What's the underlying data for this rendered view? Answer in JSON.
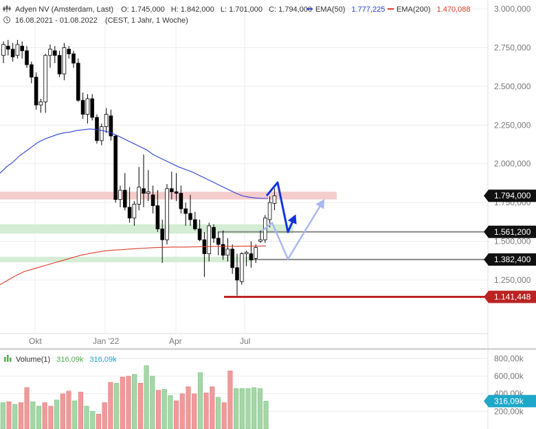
{
  "header": {
    "instrument": "Adyen NV (Amsterdam, Last)",
    "open": "O: 1.745,000",
    "high": "H: 1.842,000",
    "low": "L: 1.701,000",
    "close": "C: 1.794,000",
    "ema50_label": "EMA(50)",
    "ema50_value": "1.777,225",
    "ema200_label": "EMA(200)",
    "ema200_value": "1.470,088",
    "date_range": "16.08.2021 - 01.08.2022",
    "settings": "(CEST, 1 Jahr, 1 Woche)",
    "volume_label": "Volume(1)",
    "volume_value_1": "316,09k",
    "volume_value_2": "316,09k"
  },
  "colors": {
    "up": "#ffffff",
    "down": "#000000",
    "ema50": "#2a3fd6",
    "ema200": "#e03a2a",
    "resistance_zone": "#f4cccc",
    "support_zone": "#d4edd4",
    "support_line": "#888888",
    "low_line": "#bb2222",
    "arrow_dark": "#1133dd",
    "arrow_light": "#a9b8ee",
    "volume_up": "#a5d6a7",
    "volume_down": "#ef9a9a",
    "volume_badge": "#1ea7c8"
  },
  "chart_data": {
    "type": "candlestick",
    "x_ticks": [
      "Okt",
      "Jan '22",
      "Apr",
      "Jul"
    ],
    "y_ticks": [
      "3.000,000",
      "2.750,000",
      "2.500,000",
      "2.250,000",
      "2.000,000",
      "1.750,000",
      "1.500,000",
      "1.250,000"
    ],
    "ylim": [
      1000,
      3000
    ],
    "y_tick_values": [
      3000,
      2750,
      2500,
      2250,
      2000,
      1750,
      1500,
      1250
    ],
    "price_labels": [
      {
        "value": 1794,
        "text": "1.794,000",
        "style": "dark"
      },
      {
        "value": 1561.2,
        "text": "1.561,200",
        "style": "dark"
      },
      {
        "value": 1382.4,
        "text": "1.382,400",
        "style": "dark"
      },
      {
        "value": 1141.448,
        "text": "1.141,448",
        "style": "red"
      }
    ],
    "candles": [
      {
        "o": 2700,
        "h": 2790,
        "l": 2650,
        "c": 2770
      },
      {
        "o": 2760,
        "h": 2800,
        "l": 2700,
        "c": 2740
      },
      {
        "o": 2740,
        "h": 2780,
        "l": 2660,
        "c": 2690
      },
      {
        "o": 2700,
        "h": 2800,
        "l": 2680,
        "c": 2770
      },
      {
        "o": 2760,
        "h": 2790,
        "l": 2680,
        "c": 2730
      },
      {
        "o": 2730,
        "h": 2760,
        "l": 2620,
        "c": 2640
      },
      {
        "o": 2640,
        "h": 2660,
        "l": 2520,
        "c": 2560
      },
      {
        "o": 2560,
        "h": 2590,
        "l": 2350,
        "c": 2380
      },
      {
        "o": 2380,
        "h": 2420,
        "l": 2330,
        "c": 2400
      },
      {
        "o": 2400,
        "h": 2710,
        "l": 2330,
        "c": 2700
      },
      {
        "o": 2700,
        "h": 2770,
        "l": 2620,
        "c": 2740
      },
      {
        "o": 2730,
        "h": 2760,
        "l": 2650,
        "c": 2700
      },
      {
        "o": 2700,
        "h": 2730,
        "l": 2560,
        "c": 2580
      },
      {
        "o": 2580,
        "h": 2780,
        "l": 2540,
        "c": 2750
      },
      {
        "o": 2740,
        "h": 2760,
        "l": 2680,
        "c": 2710
      },
      {
        "o": 2710,
        "h": 2730,
        "l": 2620,
        "c": 2650
      },
      {
        "o": 2650,
        "h": 2680,
        "l": 2400,
        "c": 2410
      },
      {
        "o": 2410,
        "h": 2460,
        "l": 2290,
        "c": 2320
      },
      {
        "o": 2320,
        "h": 2450,
        "l": 2260,
        "c": 2420
      },
      {
        "o": 2420,
        "h": 2450,
        "l": 2280,
        "c": 2300
      },
      {
        "o": 2300,
        "h": 2320,
        "l": 2130,
        "c": 2150
      },
      {
        "o": 2150,
        "h": 2260,
        "l": 2120,
        "c": 2240
      },
      {
        "o": 2240,
        "h": 2360,
        "l": 2200,
        "c": 2320
      },
      {
        "o": 2310,
        "h": 2350,
        "l": 2150,
        "c": 2180
      },
      {
        "o": 2180,
        "h": 2190,
        "l": 1750,
        "c": 1770
      },
      {
        "o": 1770,
        "h": 1860,
        "l": 1720,
        "c": 1830
      },
      {
        "o": 1830,
        "h": 1940,
        "l": 1700,
        "c": 1720
      },
      {
        "o": 1720,
        "h": 1850,
        "l": 1620,
        "c": 1650
      },
      {
        "o": 1650,
        "h": 1760,
        "l": 1600,
        "c": 1740
      },
      {
        "o": 1740,
        "h": 1980,
        "l": 1700,
        "c": 1850
      },
      {
        "o": 1840,
        "h": 2060,
        "l": 1720,
        "c": 1810
      },
      {
        "o": 1810,
        "h": 1960,
        "l": 1760,
        "c": 1820
      },
      {
        "o": 1800,
        "h": 1860,
        "l": 1680,
        "c": 1730
      },
      {
        "o": 1730,
        "h": 1830,
        "l": 1560,
        "c": 1580
      },
      {
        "o": 1580,
        "h": 1640,
        "l": 1360,
        "c": 1510
      },
      {
        "o": 1510,
        "h": 1870,
        "l": 1480,
        "c": 1840
      },
      {
        "o": 1840,
        "h": 1950,
        "l": 1770,
        "c": 1820
      },
      {
        "o": 1820,
        "h": 1940,
        "l": 1760,
        "c": 1810
      },
      {
        "o": 1810,
        "h": 1860,
        "l": 1680,
        "c": 1710
      },
      {
        "o": 1710,
        "h": 1750,
        "l": 1600,
        "c": 1680
      },
      {
        "o": 1680,
        "h": 1800,
        "l": 1600,
        "c": 1640
      },
      {
        "o": 1640,
        "h": 1690,
        "l": 1570,
        "c": 1580
      },
      {
        "o": 1580,
        "h": 1640,
        "l": 1500,
        "c": 1510
      },
      {
        "o": 1510,
        "h": 1560,
        "l": 1270,
        "c": 1420
      },
      {
        "o": 1420,
        "h": 1620,
        "l": 1370,
        "c": 1600
      },
      {
        "o": 1590,
        "h": 1610,
        "l": 1490,
        "c": 1520
      },
      {
        "o": 1520,
        "h": 1560,
        "l": 1410,
        "c": 1480
      },
      {
        "o": 1480,
        "h": 1570,
        "l": 1380,
        "c": 1410
      },
      {
        "o": 1410,
        "h": 1520,
        "l": 1370,
        "c": 1450
      },
      {
        "o": 1450,
        "h": 1480,
        "l": 1290,
        "c": 1330
      },
      {
        "o": 1330,
        "h": 1420,
        "l": 1150,
        "c": 1250
      },
      {
        "o": 1240,
        "h": 1430,
        "l": 1220,
        "c": 1420
      },
      {
        "o": 1420,
        "h": 1440,
        "l": 1340,
        "c": 1430
      },
      {
        "o": 1420,
        "h": 1500,
        "l": 1330,
        "c": 1380
      },
      {
        "o": 1390,
        "h": 1480,
        "l": 1360,
        "c": 1460
      },
      {
        "o": 1500,
        "h": 1570,
        "l": 1490,
        "c": 1510
      },
      {
        "o": 1510,
        "h": 1670,
        "l": 1490,
        "c": 1650
      },
      {
        "o": 1640,
        "h": 1790,
        "l": 1590,
        "c": 1750
      },
      {
        "o": 1745,
        "h": 1842,
        "l": 1701,
        "c": 1794
      }
    ],
    "ema50": [
      1940,
      1980,
      2010,
      2050,
      2080,
      2110,
      2140,
      2160,
      2175,
      2190,
      2200,
      2205,
      2215,
      2220,
      2225,
      2222,
      2215,
      2205,
      2190,
      2170,
      2150,
      2130,
      2110,
      2090,
      2060,
      2040,
      2020,
      2000,
      1980,
      1965,
      1950,
      1930,
      1910,
      1890,
      1870,
      1850,
      1830,
      1810,
      1793,
      1785,
      1780,
      1777,
      1777
    ],
    "ema200": [
      1220,
      1250,
      1280,
      1305,
      1320,
      1335,
      1350,
      1365,
      1380,
      1395,
      1410,
      1420,
      1430,
      1438,
      1443,
      1446,
      1450,
      1453,
      1456,
      1459,
      1461,
      1462,
      1463,
      1463,
      1464,
      1465,
      1466,
      1467,
      1467,
      1468,
      1468,
      1469,
      1469,
      1470
    ],
    "zones": [
      {
        "type": "resistance",
        "y_low": 1770,
        "y_high": 1820
      },
      {
        "type": "support",
        "y_low": 1550,
        "y_high": 1610
      },
      {
        "type": "support",
        "y_low": 1380,
        "y_high": 1400
      }
    ],
    "levels": [
      1561.2,
      1382.4,
      1141.448
    ],
    "volume": {
      "y_ticks": [
        "800,00k",
        "600,00k",
        "400,00k",
        "200,00k"
      ],
      "y_tick_values": [
        800,
        600,
        400,
        200
      ],
      "ylim": [
        0,
        850
      ],
      "last_value": "316,09k",
      "bars": [
        {
          "v": 300,
          "up": true
        },
        {
          "v": 310,
          "up": false
        },
        {
          "v": 280,
          "up": true
        },
        {
          "v": 300,
          "up": false
        },
        {
          "v": 470,
          "up": false
        },
        {
          "v": 310,
          "up": true
        },
        {
          "v": 260,
          "up": true
        },
        {
          "v": 300,
          "up": false
        },
        {
          "v": 260,
          "up": false
        },
        {
          "v": 330,
          "up": true
        },
        {
          "v": 400,
          "up": false
        },
        {
          "v": 430,
          "up": false
        },
        {
          "v": 320,
          "up": true
        },
        {
          "v": 420,
          "up": false
        },
        {
          "v": 260,
          "up": true
        },
        {
          "v": 200,
          "up": true
        },
        {
          "v": 170,
          "up": false
        },
        {
          "v": 300,
          "up": false
        },
        {
          "v": 530,
          "up": false
        },
        {
          "v": 520,
          "up": true
        },
        {
          "v": 590,
          "up": false
        },
        {
          "v": 600,
          "up": false
        },
        {
          "v": 620,
          "up": true
        },
        {
          "v": 520,
          "up": false
        },
        {
          "v": 720,
          "up": true
        },
        {
          "v": 600,
          "up": true
        },
        {
          "v": 440,
          "up": false
        },
        {
          "v": 450,
          "up": true
        },
        {
          "v": 380,
          "up": true
        },
        {
          "v": 320,
          "up": false
        },
        {
          "v": 400,
          "up": false
        },
        {
          "v": 480,
          "up": false
        },
        {
          "v": 400,
          "up": false
        },
        {
          "v": 640,
          "up": true
        },
        {
          "v": 410,
          "up": false
        },
        {
          "v": 480,
          "up": false
        },
        {
          "v": 360,
          "up": true
        },
        {
          "v": 300,
          "up": false
        },
        {
          "v": 660,
          "up": false
        },
        {
          "v": 460,
          "up": true
        },
        {
          "v": 460,
          "up": true
        },
        {
          "v": 460,
          "up": true
        },
        {
          "v": 470,
          "up": true
        },
        {
          "v": 460,
          "up": true
        },
        {
          "v": 316.09,
          "up": true
        }
      ]
    },
    "annotations": [
      {
        "type": "dark-arrow",
        "points": [
          [
            1794,
            0
          ],
          [
            1880,
            1
          ],
          [
            1560,
            2
          ],
          [
            1690,
            3
          ]
        ]
      },
      {
        "type": "light-arrow",
        "points": [
          [
            1580,
            0
          ],
          [
            1620,
            1
          ],
          [
            1380,
            2
          ],
          [
            1780,
            3
          ]
        ]
      }
    ]
  }
}
